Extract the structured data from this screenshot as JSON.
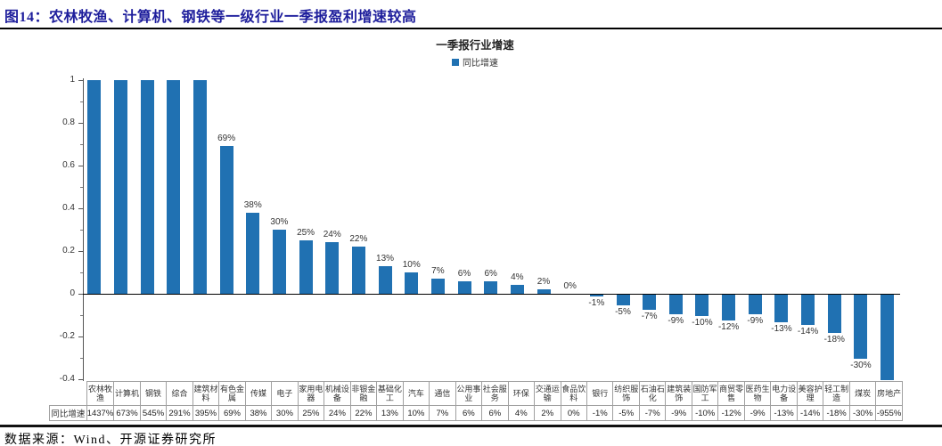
{
  "figure": {
    "title": "图14：农林牧渔、计算机、钢铁等一级行业一季报盈利增速较高"
  },
  "chart": {
    "title": "一季报行业增速",
    "legend": "同比增速",
    "bar_color": "#2071B2"
  },
  "chart_data": {
    "type": "bar",
    "title": "一季报行业增速",
    "legend_entries": [
      "同比增速"
    ],
    "categories": [
      "农林牧渔",
      "计算机",
      "钢铁",
      "综合",
      "建筑材料",
      "有色金属",
      "传媒",
      "电子",
      "家用电器",
      "机械设备",
      "非银金融",
      "基础化工",
      "汽车",
      "通信",
      "公用事业",
      "社会服务",
      "环保",
      "交通运输",
      "食品饮料",
      "银行",
      "纺织服饰",
      "石油石化",
      "建筑装饰",
      "国防军工",
      "商贸零售",
      "医药生物",
      "电力设备",
      "美容护理",
      "轻工制造",
      "煤炭",
      "房地产"
    ],
    "values_pct": [
      1437,
      673,
      545,
      291,
      395,
      69,
      38,
      30,
      25,
      24,
      22,
      13,
      10,
      7,
      6,
      6,
      4,
      2,
      0,
      -1,
      -5,
      -7,
      -9,
      -10,
      -12,
      -9,
      -13,
      -14,
      -18,
      -30,
      -955
    ],
    "value_labels": [
      "1437%",
      "673%",
      "545%",
      "291%",
      "395%",
      "69%",
      "38%",
      "30%",
      "25%",
      "24%",
      "22%",
      "13%",
      "10%",
      "7%",
      "6%",
      "6%",
      "4%",
      "2%",
      "0%",
      "-1%",
      "-5%",
      "-7%",
      "-9%",
      "-10%",
      "-12%",
      "-9%",
      "-13%",
      "-14%",
      "-18%",
      "-30%",
      "-955%"
    ],
    "ylim": [
      -0.4,
      1.0
    ],
    "y_tick_values": [
      1,
      0.8,
      0.6,
      0.4,
      0.2,
      0,
      -0.2,
      -0.4
    ],
    "y_tick_labels": [
      "1",
      "0.8",
      "0.6",
      "0.4",
      "0.2",
      "0",
      "-0.2",
      "-0.4"
    ],
    "grid": false,
    "legend_position": "top-center",
    "bars_clipped_at_axis_limits": true
  },
  "table": {
    "row_label": "同比增速"
  },
  "footer": {
    "source": "数据来源：Wind、开源证券研究所"
  }
}
